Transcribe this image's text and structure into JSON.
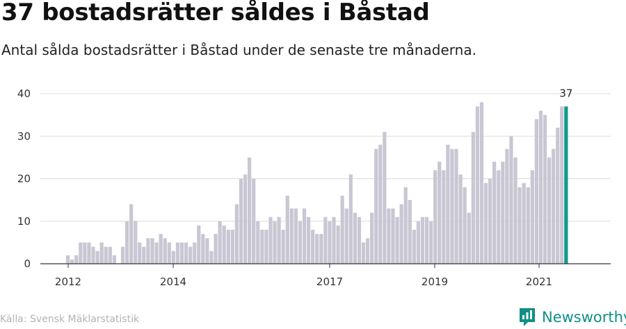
{
  "header": {
    "title": "37 bostadsrätter såldes i Båstad",
    "subtitle": "Antal sålda bostadsrätter i Båstad under de senaste tre månaderna."
  },
  "footer": {
    "source": "Källa: Svensk Mäklarstatistik",
    "brand": "Newsworthy",
    "brand_color": "#0f8f86"
  },
  "chart_data": {
    "type": "bar",
    "title": "37 bostadsrätter såldes i Båstad",
    "subtitle": "Antal sålda bostadsrätter i Båstad under de senaste tre månaderna.",
    "xlabel": "",
    "ylabel": "",
    "ylim": [
      0,
      40
    ],
    "yticks": [
      0,
      10,
      20,
      30,
      40
    ],
    "xticks": [
      "2012",
      "2014",
      "2017",
      "2019",
      "2021"
    ],
    "grid": true,
    "bar_color": "#c8c7d3",
    "highlight_color": "#0e9a8e",
    "highlight_label": "37",
    "values": [
      2,
      1,
      2,
      5,
      5,
      5,
      4,
      3,
      5,
      4,
      4,
      2,
      null,
      4,
      10,
      14,
      10,
      5,
      4,
      6,
      6,
      5,
      7,
      6,
      5,
      3,
      5,
      5,
      5,
      4,
      5,
      9,
      7,
      6,
      3,
      7,
      10,
      9,
      8,
      8,
      14,
      20,
      21,
      25,
      20,
      10,
      8,
      8,
      11,
      10,
      11,
      8,
      16,
      13,
      13,
      10,
      13,
      11,
      8,
      7,
      7,
      11,
      10,
      11,
      9,
      16,
      13,
      21,
      12,
      11,
      5,
      6,
      12,
      27,
      28,
      31,
      13,
      13,
      11,
      14,
      18,
      15,
      8,
      10,
      11,
      11,
      10,
      22,
      24,
      22,
      28,
      27,
      27,
      21,
      18,
      12,
      31,
      37,
      38,
      19,
      20,
      24,
      22,
      24,
      27,
      30,
      25,
      18,
      19,
      18,
      22,
      34,
      36,
      35,
      25,
      27,
      32,
      37,
      37
    ]
  }
}
